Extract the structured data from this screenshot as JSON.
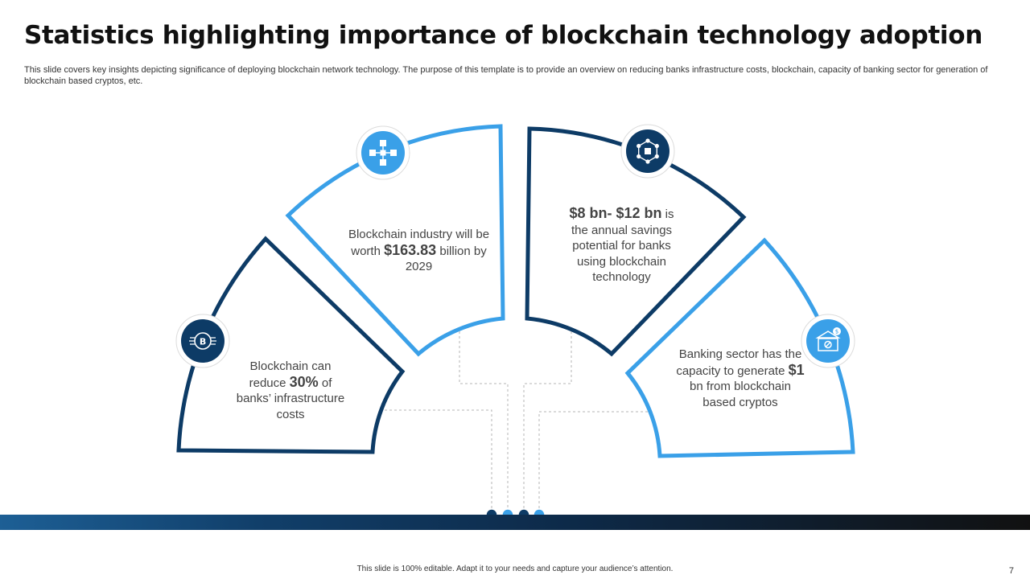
{
  "slide": {
    "title": "Statistics highlighting importance of blockchain technology adoption",
    "subtitle": "This slide covers key insights depicting significance of deploying blockchain network technology. The purpose of this template is to provide an overview on reducing banks infrastructure costs, blockchain, capacity of banking sector for generation of blockchain based cryptos, etc.",
    "footer": "This slide is 100% editable. Adapt it to your needs and capture your audience’s attention.",
    "page_number": "7"
  },
  "colors": {
    "dark_blue": "#0d3b66",
    "light_blue": "#3aa0e8"
  },
  "segments": [
    {
      "id": "infrastructure",
      "pre": "Blockchain can reduce",
      "highlight": "30%",
      "post": "of banks’ infrastructure costs",
      "icon": "bitcoin-chip-icon",
      "color": "dark"
    },
    {
      "id": "industry-worth",
      "pre": "Blockchain industry will be worth",
      "highlight": "$163.83",
      "post": "billion by 2029",
      "icon": "blockchain-network-icon",
      "color": "light"
    },
    {
      "id": "annual-savings",
      "pre": "",
      "highlight": "$8 bn- $12 bn",
      "post": "is the annual savings potential for banks using blockchain technology",
      "icon": "hexagon-nodes-icon",
      "color": "dark"
    },
    {
      "id": "banking-capacity",
      "pre": "Banking sector has the capacity to generate",
      "highlight": "$1",
      "post": "bn from blockchain based cryptos",
      "icon": "bank-percent-icon",
      "color": "light"
    }
  ]
}
